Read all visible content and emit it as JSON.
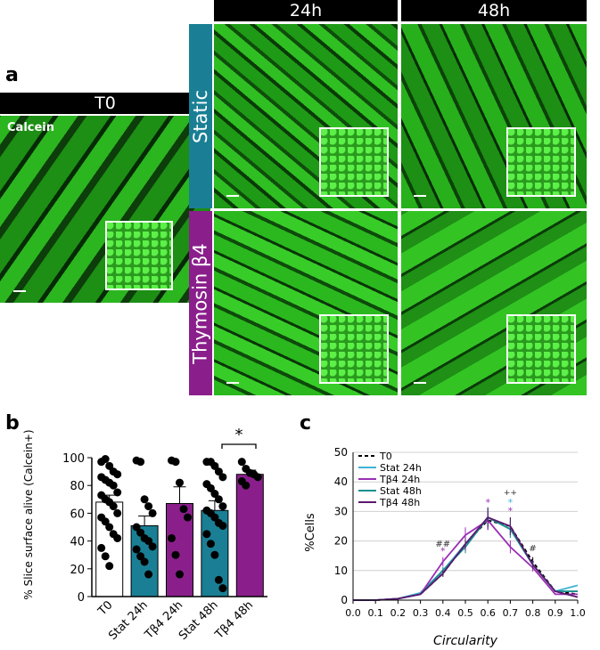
{
  "panel_a": {
    "letter": "a",
    "columns": [
      "24h",
      "48h"
    ],
    "rows": [
      "Static",
      "Thymosin β4"
    ],
    "t0_header": "T0",
    "calcein_label": "Calcein",
    "colors": {
      "static": "#1a7f94",
      "thymosin": "#8a1f8c",
      "green": "#2fc41e"
    }
  },
  "panel_b": {
    "letter": "b",
    "significance": "*"
  },
  "panel_c": {
    "letter": "c",
    "annotations": [
      "##",
      "++",
      "#",
      "*",
      "*",
      "*",
      "*"
    ]
  },
  "chart_data": [
    {
      "type": "bar",
      "ylabel": "% Slice surface alive (Calcein+)",
      "ylim": [
        0,
        100
      ],
      "yticks": [
        0,
        20,
        40,
        60,
        80,
        100
      ],
      "categories": [
        "T0",
        "Stat 24h",
        "Tβ4 24h",
        "Stat 48h",
        "Tβ4 48h"
      ],
      "values": [
        68,
        51,
        67,
        62,
        88
      ],
      "errors": [
        5,
        7,
        12,
        7,
        3
      ],
      "colors": [
        "#ffffff",
        "#1a7f94",
        "#8a1f8c",
        "#1a7f94",
        "#8a1f8c"
      ],
      "points": [
        [
          97,
          99,
          94,
          90,
          88,
          86,
          84,
          82,
          80,
          75,
          73,
          70,
          68,
          65,
          60,
          57,
          54,
          50,
          45,
          42,
          35,
          29,
          22
        ],
        [
          98,
          97,
          70,
          65,
          60,
          50,
          46,
          42,
          40,
          36,
          34,
          29,
          25,
          16
        ],
        [
          98,
          97,
          82,
          63,
          57,
          42,
          30,
          16
        ],
        [
          97,
          97,
          94,
          90,
          86,
          81,
          78,
          74,
          70,
          65,
          62,
          60,
          57,
          53,
          51,
          45,
          38,
          30,
          12,
          6
        ],
        [
          97,
          92,
          89,
          88,
          86,
          83,
          80
        ]
      ]
    },
    {
      "type": "line",
      "xlabel": "Circularity",
      "ylabel": "%Cells",
      "x": [
        0.0,
        0.1,
        0.2,
        0.3,
        0.4,
        0.5,
        0.6,
        0.7,
        0.8,
        0.9,
        1.0
      ],
      "xlim": [
        0,
        1
      ],
      "ylim": [
        0,
        50
      ],
      "yticks": [
        0,
        10,
        20,
        30,
        40,
        50
      ],
      "legend": "top-left",
      "series": [
        {
          "name": "T0",
          "color": "#000000",
          "dashed": true,
          "values": [
            0,
            0,
            0.5,
            2,
            9,
            19,
            27,
            25,
            13,
            3,
            2
          ]
        },
        {
          "name": "Stat 24h",
          "color": "#3fb3d4",
          "dashed": false,
          "values": [
            0,
            0,
            0.5,
            2.5,
            10,
            19,
            28,
            24,
            12,
            3,
            5
          ]
        },
        {
          "name": "Tβ4 24h",
          "color": "#9b2fb5",
          "dashed": false,
          "values": [
            0,
            0,
            0.5,
            2,
            13,
            22,
            27,
            18,
            11,
            2,
            2
          ]
        },
        {
          "name": "Stat 48h",
          "color": "#1a8f8f",
          "dashed": false,
          "values": [
            0,
            0,
            0.5,
            2,
            10,
            18,
            28,
            24,
            12,
            3,
            3
          ]
        },
        {
          "name": "Tβ4 48h",
          "color": "#5a1a6e",
          "dashed": false,
          "values": [
            0,
            0,
            0.5,
            2,
            9,
            19,
            28,
            25,
            12,
            3,
            1
          ]
        }
      ]
    }
  ]
}
